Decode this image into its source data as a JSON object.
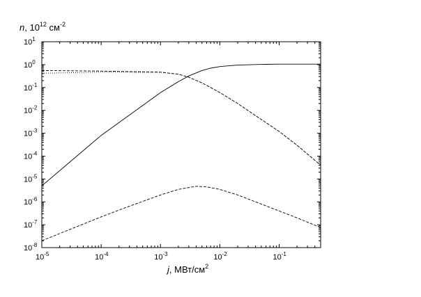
{
  "chart_data": {
    "type": "line",
    "xscale": "log",
    "yscale": "log",
    "xlim": [
      1e-05,
      0.5
    ],
    "ylim": [
      1e-08,
      10
    ],
    "grid": false,
    "xlabel": {
      "var": "j",
      "rest": ", МВт/см",
      "exp": "2"
    },
    "ylabel": {
      "var": "n",
      "rest": ", 10",
      "exp1": "12",
      "mid": " см",
      "exp2": "-2"
    },
    "x_ticks": [
      {
        "base": "10",
        "exp": "-5",
        "value": 1e-05
      },
      {
        "base": "10",
        "exp": "-4",
        "value": 0.0001
      },
      {
        "base": "10",
        "exp": "-3",
        "value": 0.001
      },
      {
        "base": "10",
        "exp": "-2",
        "value": 0.01
      },
      {
        "base": "10",
        "exp": "-1",
        "value": 0.1
      }
    ],
    "y_ticks": [
      {
        "base": "10",
        "exp": "1",
        "value": 10
      },
      {
        "base": "10",
        "exp": "0",
        "value": 1
      },
      {
        "base": "10",
        "exp": "-1",
        "value": 0.1
      },
      {
        "base": "10",
        "exp": "-2",
        "value": 0.01
      },
      {
        "base": "10",
        "exp": "-3",
        "value": 0.001
      },
      {
        "base": "10",
        "exp": "-4",
        "value": 0.0001
      },
      {
        "base": "10",
        "exp": "-5",
        "value": 1e-05
      },
      {
        "base": "10",
        "exp": "-6",
        "value": 1e-06
      },
      {
        "base": "10",
        "exp": "-7",
        "value": 1e-07
      },
      {
        "base": "10",
        "exp": "-8",
        "value": 1e-08
      }
    ],
    "series": [
      {
        "style": "solid",
        "x": [
          1e-05,
          0.0001,
          0.001,
          0.002,
          0.003,
          0.005,
          0.007,
          0.01,
          0.02,
          0.05,
          0.1,
          0.2,
          0.5
        ],
        "y": [
          5e-06,
          0.0008,
          0.06,
          0.18,
          0.32,
          0.55,
          0.7,
          0.82,
          0.95,
          1.02,
          1.05,
          1.05,
          1.05
        ]
      },
      {
        "style": "dashed",
        "x": [
          1e-05,
          0.0001,
          0.001,
          0.002,
          0.003,
          0.005,
          0.007,
          0.01,
          0.02,
          0.05,
          0.1,
          0.2,
          0.5
        ],
        "y": [
          0.55,
          0.52,
          0.47,
          0.38,
          0.28,
          0.16,
          0.1,
          0.06,
          0.02,
          0.004,
          0.0012,
          0.0003,
          4e-05
        ]
      },
      {
        "style": "dotted",
        "x": [
          1e-05,
          0.0001,
          0.001,
          0.002,
          0.003,
          0.005,
          0.007,
          0.01,
          0.02,
          0.05,
          0.1,
          0.2,
          0.5
        ],
        "y": [
          0.42,
          0.47,
          0.46,
          0.38,
          0.28,
          0.16,
          0.1,
          0.06,
          0.02,
          0.004,
          0.0012,
          0.0003,
          4e-05
        ]
      },
      {
        "style": "dashed",
        "x": [
          1e-05,
          0.0001,
          0.0003,
          0.001,
          0.002,
          0.004,
          0.006,
          0.01,
          0.02,
          0.05,
          0.1,
          0.2,
          0.5
        ],
        "y": [
          2e-08,
          2.2e-07,
          6.5e-07,
          2e-06,
          3.5e-06,
          4.8e-06,
          4.5e-06,
          3.5e-06,
          2e-06,
          8e-07,
          4e-07,
          2e-07,
          7.5e-08
        ]
      }
    ]
  }
}
